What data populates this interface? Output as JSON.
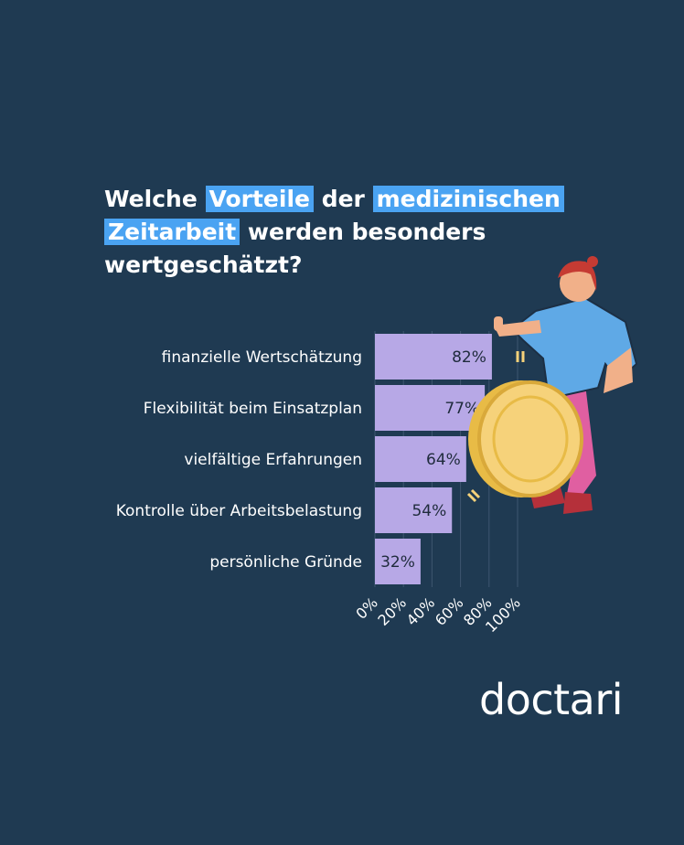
{
  "title": {
    "parts": [
      "Welche ",
      "Vorteile",
      " der ",
      "medizinischen",
      "Zeitarbeit",
      " werden besonders",
      "wertgeschätzt?"
    ]
  },
  "chart_data": {
    "type": "bar",
    "orientation": "horizontal",
    "categories": [
      "finanzielle Wertschätzung",
      "Flexibilität beim Einsatzplan",
      "vielfältige Erfahrungen",
      "Kontrolle über Arbeitsbelastung",
      "persönliche Gründe"
    ],
    "values": [
      82,
      77,
      64,
      54,
      32
    ],
    "data_labels": [
      "82%",
      "77%",
      "64%",
      "54%",
      "32%"
    ],
    "x_ticks": [
      "0%",
      "20%",
      "40%",
      "60%",
      "80%",
      "100%"
    ],
    "xlim": [
      0,
      100
    ],
    "bar_color": "#b7a8e6",
    "grid": true
  },
  "brand": {
    "logo_text": "doctari"
  },
  "colors": {
    "background": "#1f3a52",
    "highlight": "#4aa3f2"
  }
}
